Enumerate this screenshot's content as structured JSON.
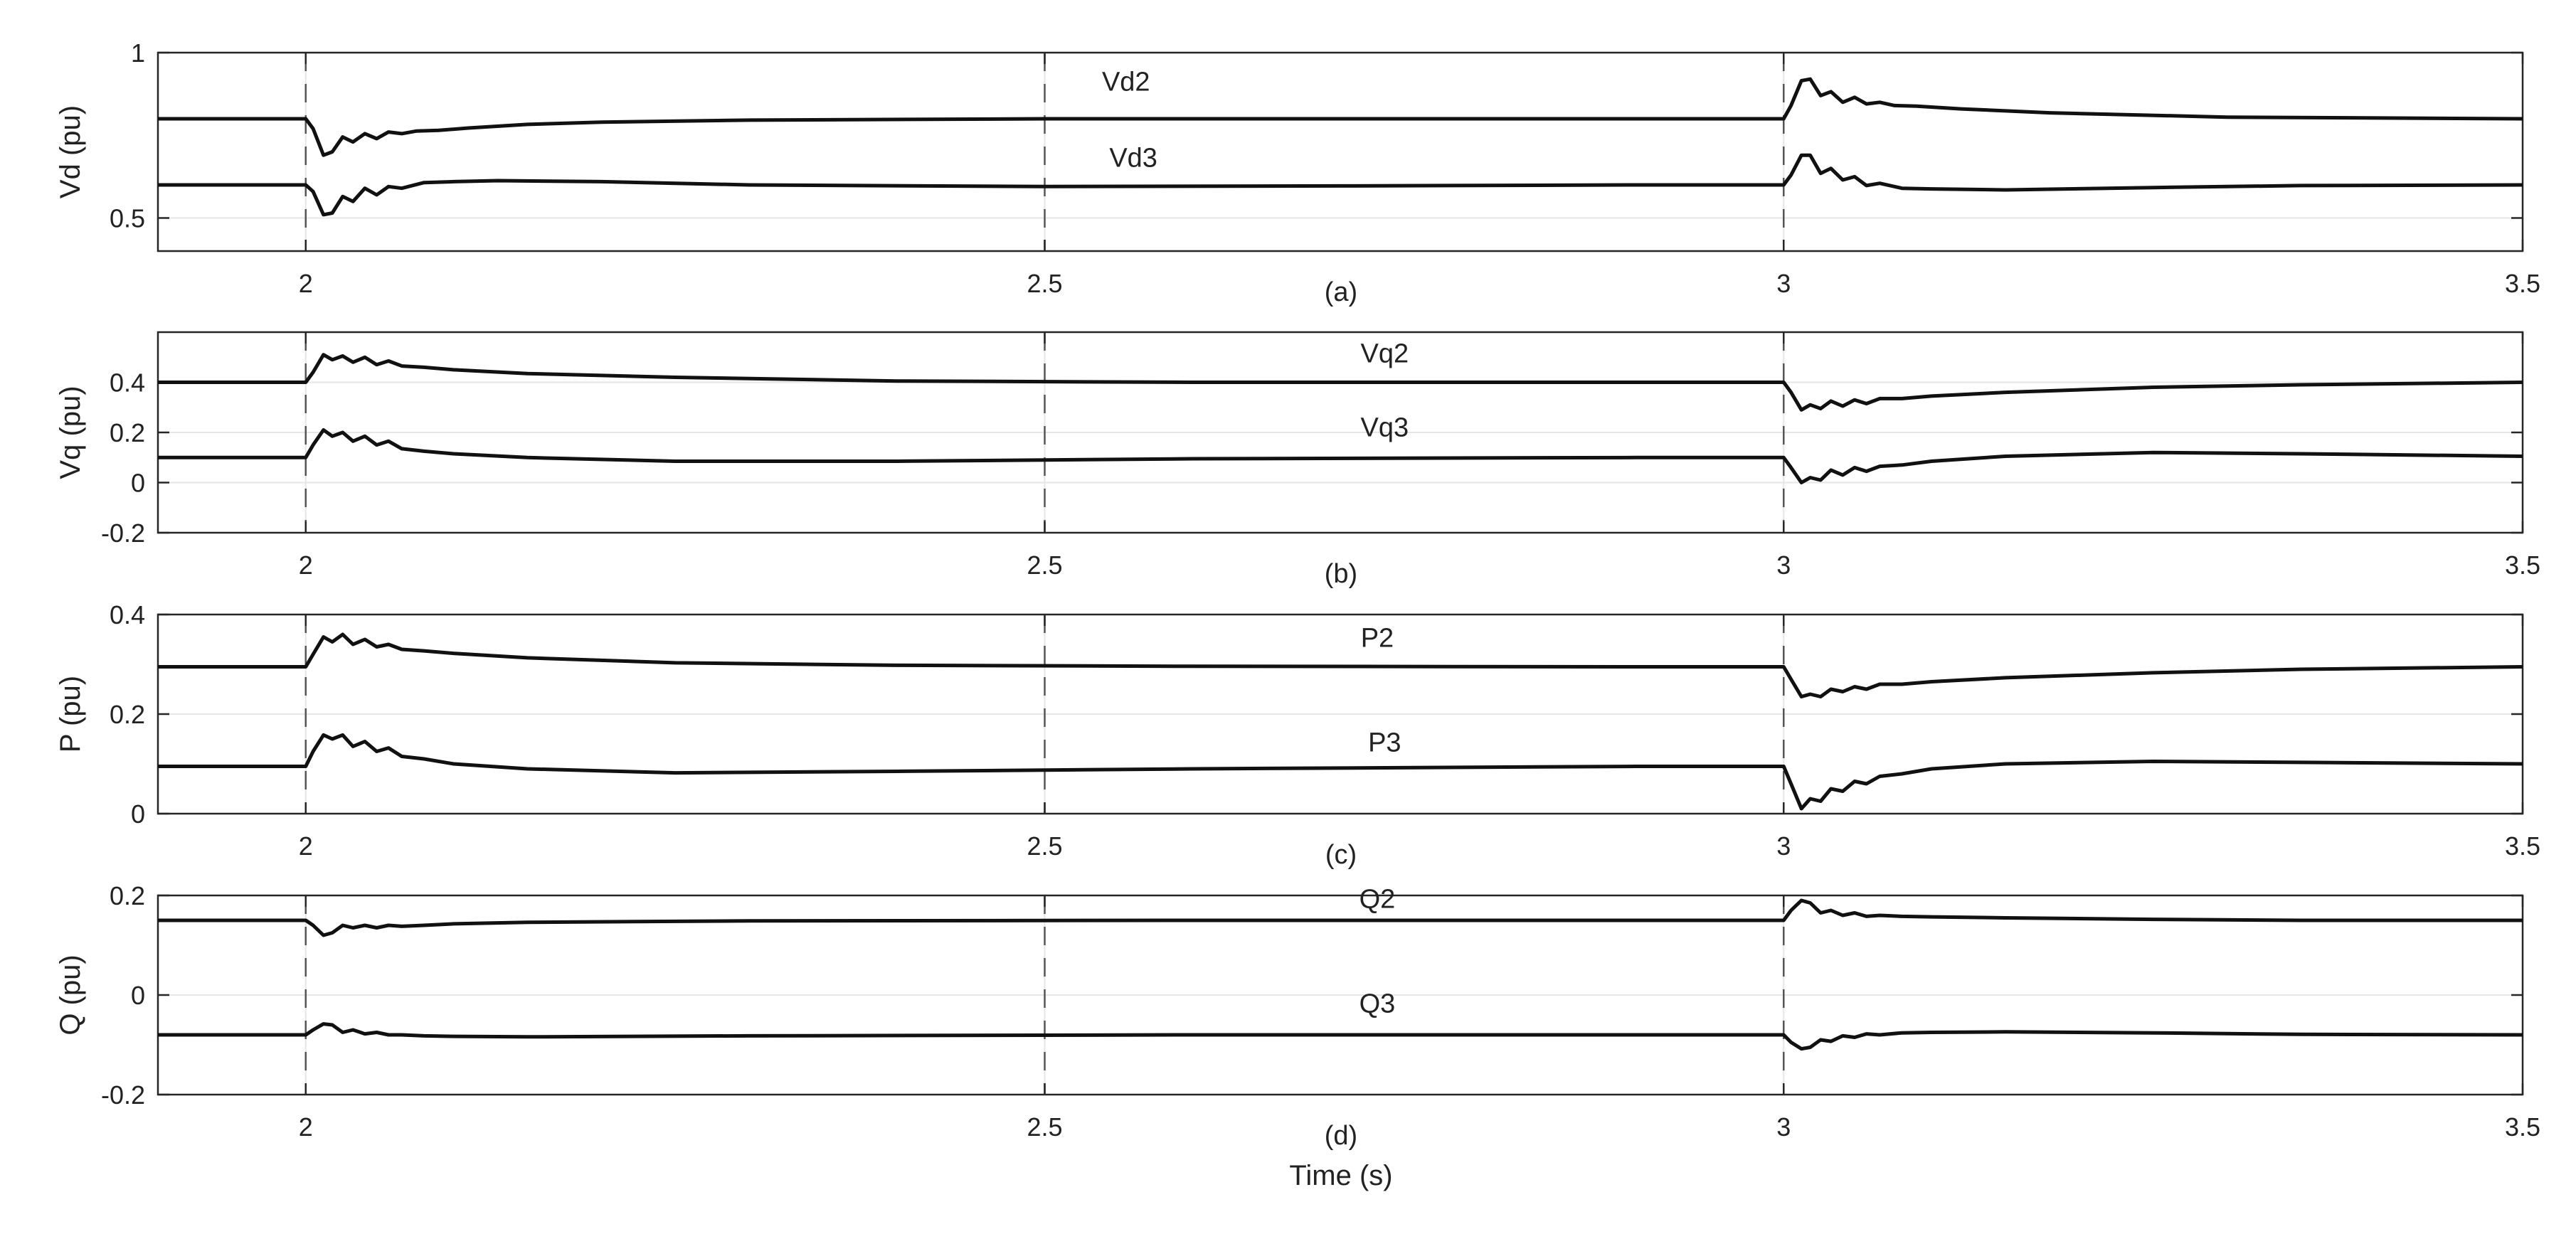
{
  "chart_data": {
    "type": "line",
    "xlabel": "Time (s)",
    "xlim": [
      1.9,
      3.5
    ],
    "xticks": [
      2,
      2.5,
      3,
      3.5
    ],
    "xtick_labels": [
      "2",
      "2.5",
      "3",
      "3.5"
    ],
    "grid": true,
    "event_times": [
      2,
      2.5,
      3
    ],
    "panels": [
      {
        "id": "a",
        "caption": "(a)",
        "ylabel": "Vd (pu)",
        "ylim": [
          0.4,
          1.0
        ],
        "yticks": [
          0.5,
          1
        ],
        "ytick_labels": [
          "0.5",
          "1"
        ],
        "series": [
          {
            "name": "Vd2",
            "label_x": 2.555,
            "label_y": 0.885,
            "x": [
              1.9,
              2.0,
              2.005,
              2.012,
              2.018,
              2.025,
              2.032,
              2.04,
              2.048,
              2.056,
              2.065,
              2.075,
              2.09,
              2.11,
              2.15,
              2.2,
              2.3,
              2.5,
              2.7,
              2.9,
              3.0,
              3.005,
              3.012,
              3.018,
              3.025,
              3.032,
              3.04,
              3.048,
              3.056,
              3.065,
              3.075,
              3.09,
              3.12,
              3.18,
              3.3,
              3.5
            ],
            "y": [
              0.8,
              0.8,
              0.77,
              0.69,
              0.7,
              0.745,
              0.73,
              0.755,
              0.74,
              0.76,
              0.755,
              0.763,
              0.765,
              0.772,
              0.783,
              0.79,
              0.796,
              0.8,
              0.8,
              0.8,
              0.8,
              0.84,
              0.915,
              0.92,
              0.87,
              0.882,
              0.85,
              0.865,
              0.845,
              0.85,
              0.84,
              0.838,
              0.83,
              0.818,
              0.805,
              0.8
            ]
          },
          {
            "name": "Vd3",
            "label_x": 2.56,
            "label_y": 0.655,
            "x": [
              1.9,
              2.0,
              2.005,
              2.012,
              2.018,
              2.025,
              2.032,
              2.04,
              2.048,
              2.056,
              2.065,
              2.08,
              2.1,
              2.13,
              2.2,
              2.3,
              2.5,
              2.7,
              2.9,
              3.0,
              3.005,
              3.012,
              3.018,
              3.025,
              3.032,
              3.04,
              3.048,
              3.056,
              3.065,
              3.08,
              3.1,
              3.15,
              3.25,
              3.35,
              3.5
            ],
            "y": [
              0.6,
              0.6,
              0.58,
              0.51,
              0.515,
              0.565,
              0.55,
              0.59,
              0.57,
              0.595,
              0.59,
              0.607,
              0.61,
              0.613,
              0.61,
              0.6,
              0.595,
              0.597,
              0.6,
              0.6,
              0.63,
              0.69,
              0.69,
              0.635,
              0.65,
              0.615,
              0.625,
              0.598,
              0.605,
              0.59,
              0.588,
              0.585,
              0.592,
              0.598,
              0.6
            ]
          }
        ]
      },
      {
        "id": "b",
        "caption": "(b)",
        "ylabel": "Vq (pu)",
        "ylim": [
          -0.2,
          0.6
        ],
        "yticks": [
          -0.2,
          0,
          0.2,
          0.4
        ],
        "ytick_labels": [
          "-0.2",
          "0",
          "0.2",
          "0.4"
        ],
        "series": [
          {
            "name": "Vq2",
            "label_x": 2.73,
            "label_y": 0.48,
            "x": [
              1.9,
              2.0,
              2.005,
              2.012,
              2.018,
              2.025,
              2.032,
              2.04,
              2.048,
              2.056,
              2.065,
              2.08,
              2.1,
              2.15,
              2.25,
              2.4,
              2.6,
              2.9,
              3.0,
              3.005,
              3.012,
              3.018,
              3.025,
              3.032,
              3.04,
              3.048,
              3.056,
              3.065,
              3.08,
              3.1,
              3.15,
              3.25,
              3.35,
              3.5
            ],
            "y": [
              0.4,
              0.4,
              0.44,
              0.51,
              0.49,
              0.505,
              0.48,
              0.5,
              0.47,
              0.485,
              0.465,
              0.46,
              0.45,
              0.435,
              0.42,
              0.405,
              0.4,
              0.4,
              0.4,
              0.36,
              0.29,
              0.31,
              0.295,
              0.325,
              0.305,
              0.33,
              0.315,
              0.335,
              0.335,
              0.345,
              0.36,
              0.38,
              0.39,
              0.4
            ]
          },
          {
            "name": "Vq3",
            "label_x": 2.73,
            "label_y": 0.185,
            "x": [
              1.9,
              2.0,
              2.005,
              2.012,
              2.018,
              2.025,
              2.032,
              2.04,
              2.048,
              2.056,
              2.065,
              2.08,
              2.1,
              2.15,
              2.25,
              2.4,
              2.6,
              2.9,
              3.0,
              3.005,
              3.012,
              3.018,
              3.025,
              3.032,
              3.04,
              3.048,
              3.056,
              3.065,
              3.08,
              3.1,
              3.15,
              3.25,
              3.35,
              3.5
            ],
            "y": [
              0.1,
              0.1,
              0.15,
              0.21,
              0.185,
              0.2,
              0.165,
              0.185,
              0.15,
              0.165,
              0.135,
              0.125,
              0.115,
              0.1,
              0.085,
              0.085,
              0.095,
              0.1,
              0.1,
              0.06,
              0.0,
              0.02,
              0.01,
              0.05,
              0.03,
              0.06,
              0.045,
              0.065,
              0.07,
              0.085,
              0.105,
              0.12,
              0.115,
              0.105
            ]
          }
        ]
      },
      {
        "id": "c",
        "caption": "(c)",
        "ylabel": "P (pu)",
        "ylim": [
          0,
          0.4
        ],
        "yticks": [
          0,
          0.2,
          0.4
        ],
        "ytick_labels": [
          "0",
          "0.2",
          "0.4"
        ],
        "series": [
          {
            "name": "P2",
            "label_x": 2.725,
            "label_y": 0.335,
            "x": [
              1.9,
              2.0,
              2.005,
              2.012,
              2.018,
              2.025,
              2.032,
              2.04,
              2.048,
              2.056,
              2.065,
              2.08,
              2.1,
              2.15,
              2.25,
              2.4,
              2.6,
              2.9,
              3.0,
              3.005,
              3.012,
              3.018,
              3.025,
              3.032,
              3.04,
              3.048,
              3.056,
              3.065,
              3.08,
              3.1,
              3.15,
              3.25,
              3.35,
              3.5
            ],
            "y": [
              0.295,
              0.295,
              0.32,
              0.355,
              0.345,
              0.36,
              0.34,
              0.35,
              0.335,
              0.34,
              0.33,
              0.327,
              0.322,
              0.313,
              0.303,
              0.298,
              0.296,
              0.295,
              0.295,
              0.27,
              0.235,
              0.24,
              0.235,
              0.25,
              0.245,
              0.255,
              0.25,
              0.26,
              0.26,
              0.265,
              0.273,
              0.283,
              0.29,
              0.295
            ]
          },
          {
            "name": "P3",
            "label_x": 2.73,
            "label_y": 0.125,
            "x": [
              1.9,
              2.0,
              2.005,
              2.012,
              2.018,
              2.025,
              2.032,
              2.04,
              2.048,
              2.056,
              2.065,
              2.08,
              2.1,
              2.15,
              2.25,
              2.4,
              2.6,
              2.9,
              3.0,
              3.005,
              3.012,
              3.018,
              3.025,
              3.032,
              3.04,
              3.048,
              3.056,
              3.065,
              3.08,
              3.1,
              3.15,
              3.25,
              3.35,
              3.5
            ],
            "y": [
              0.095,
              0.095,
              0.125,
              0.158,
              0.15,
              0.158,
              0.135,
              0.145,
              0.125,
              0.132,
              0.115,
              0.11,
              0.1,
              0.09,
              0.082,
              0.085,
              0.09,
              0.095,
              0.095,
              0.06,
              0.01,
              0.03,
              0.025,
              0.05,
              0.045,
              0.065,
              0.06,
              0.075,
              0.08,
              0.09,
              0.1,
              0.105,
              0.103,
              0.1
            ]
          }
        ]
      },
      {
        "id": "d",
        "caption": "(d)",
        "ylabel": "Q (pu)",
        "ylim": [
          -0.2,
          0.2
        ],
        "yticks": [
          -0.2,
          0,
          0.2
        ],
        "ytick_labels": [
          "-0.2",
          "0",
          "0.2"
        ],
        "series": [
          {
            "name": "Q2",
            "label_x": 2.725,
            "label_y": 0.175,
            "x": [
              1.9,
              2.0,
              2.005,
              2.012,
              2.018,
              2.025,
              2.032,
              2.04,
              2.048,
              2.056,
              2.065,
              2.08,
              2.1,
              2.15,
              2.3,
              2.6,
              2.9,
              3.0,
              3.005,
              3.012,
              3.018,
              3.025,
              3.032,
              3.04,
              3.048,
              3.056,
              3.065,
              3.08,
              3.1,
              3.15,
              3.25,
              3.35,
              3.5
            ],
            "y": [
              0.15,
              0.15,
              0.14,
              0.12,
              0.125,
              0.14,
              0.135,
              0.14,
              0.135,
              0.14,
              0.138,
              0.14,
              0.143,
              0.146,
              0.149,
              0.15,
              0.15,
              0.15,
              0.17,
              0.19,
              0.185,
              0.165,
              0.17,
              0.16,
              0.165,
              0.158,
              0.16,
              0.158,
              0.157,
              0.155,
              0.152,
              0.15,
              0.15
            ]
          },
          {
            "name": "Q3",
            "label_x": 2.725,
            "label_y": -0.035,
            "x": [
              1.9,
              2.0,
              2.005,
              2.012,
              2.018,
              2.025,
              2.032,
              2.04,
              2.048,
              2.056,
              2.065,
              2.08,
              2.1,
              2.15,
              2.3,
              2.6,
              2.9,
              3.0,
              3.005,
              3.012,
              3.018,
              3.025,
              3.032,
              3.04,
              3.048,
              3.056,
              3.065,
              3.08,
              3.1,
              3.15,
              3.25,
              3.35,
              3.5
            ],
            "y": [
              -0.08,
              -0.08,
              -0.07,
              -0.058,
              -0.06,
              -0.075,
              -0.07,
              -0.078,
              -0.075,
              -0.08,
              -0.08,
              -0.082,
              -0.083,
              -0.084,
              -0.082,
              -0.08,
              -0.08,
              -0.08,
              -0.095,
              -0.108,
              -0.105,
              -0.09,
              -0.093,
              -0.082,
              -0.085,
              -0.078,
              -0.08,
              -0.076,
              -0.075,
              -0.074,
              -0.076,
              -0.079,
              -0.08
            ]
          }
        ]
      }
    ]
  }
}
